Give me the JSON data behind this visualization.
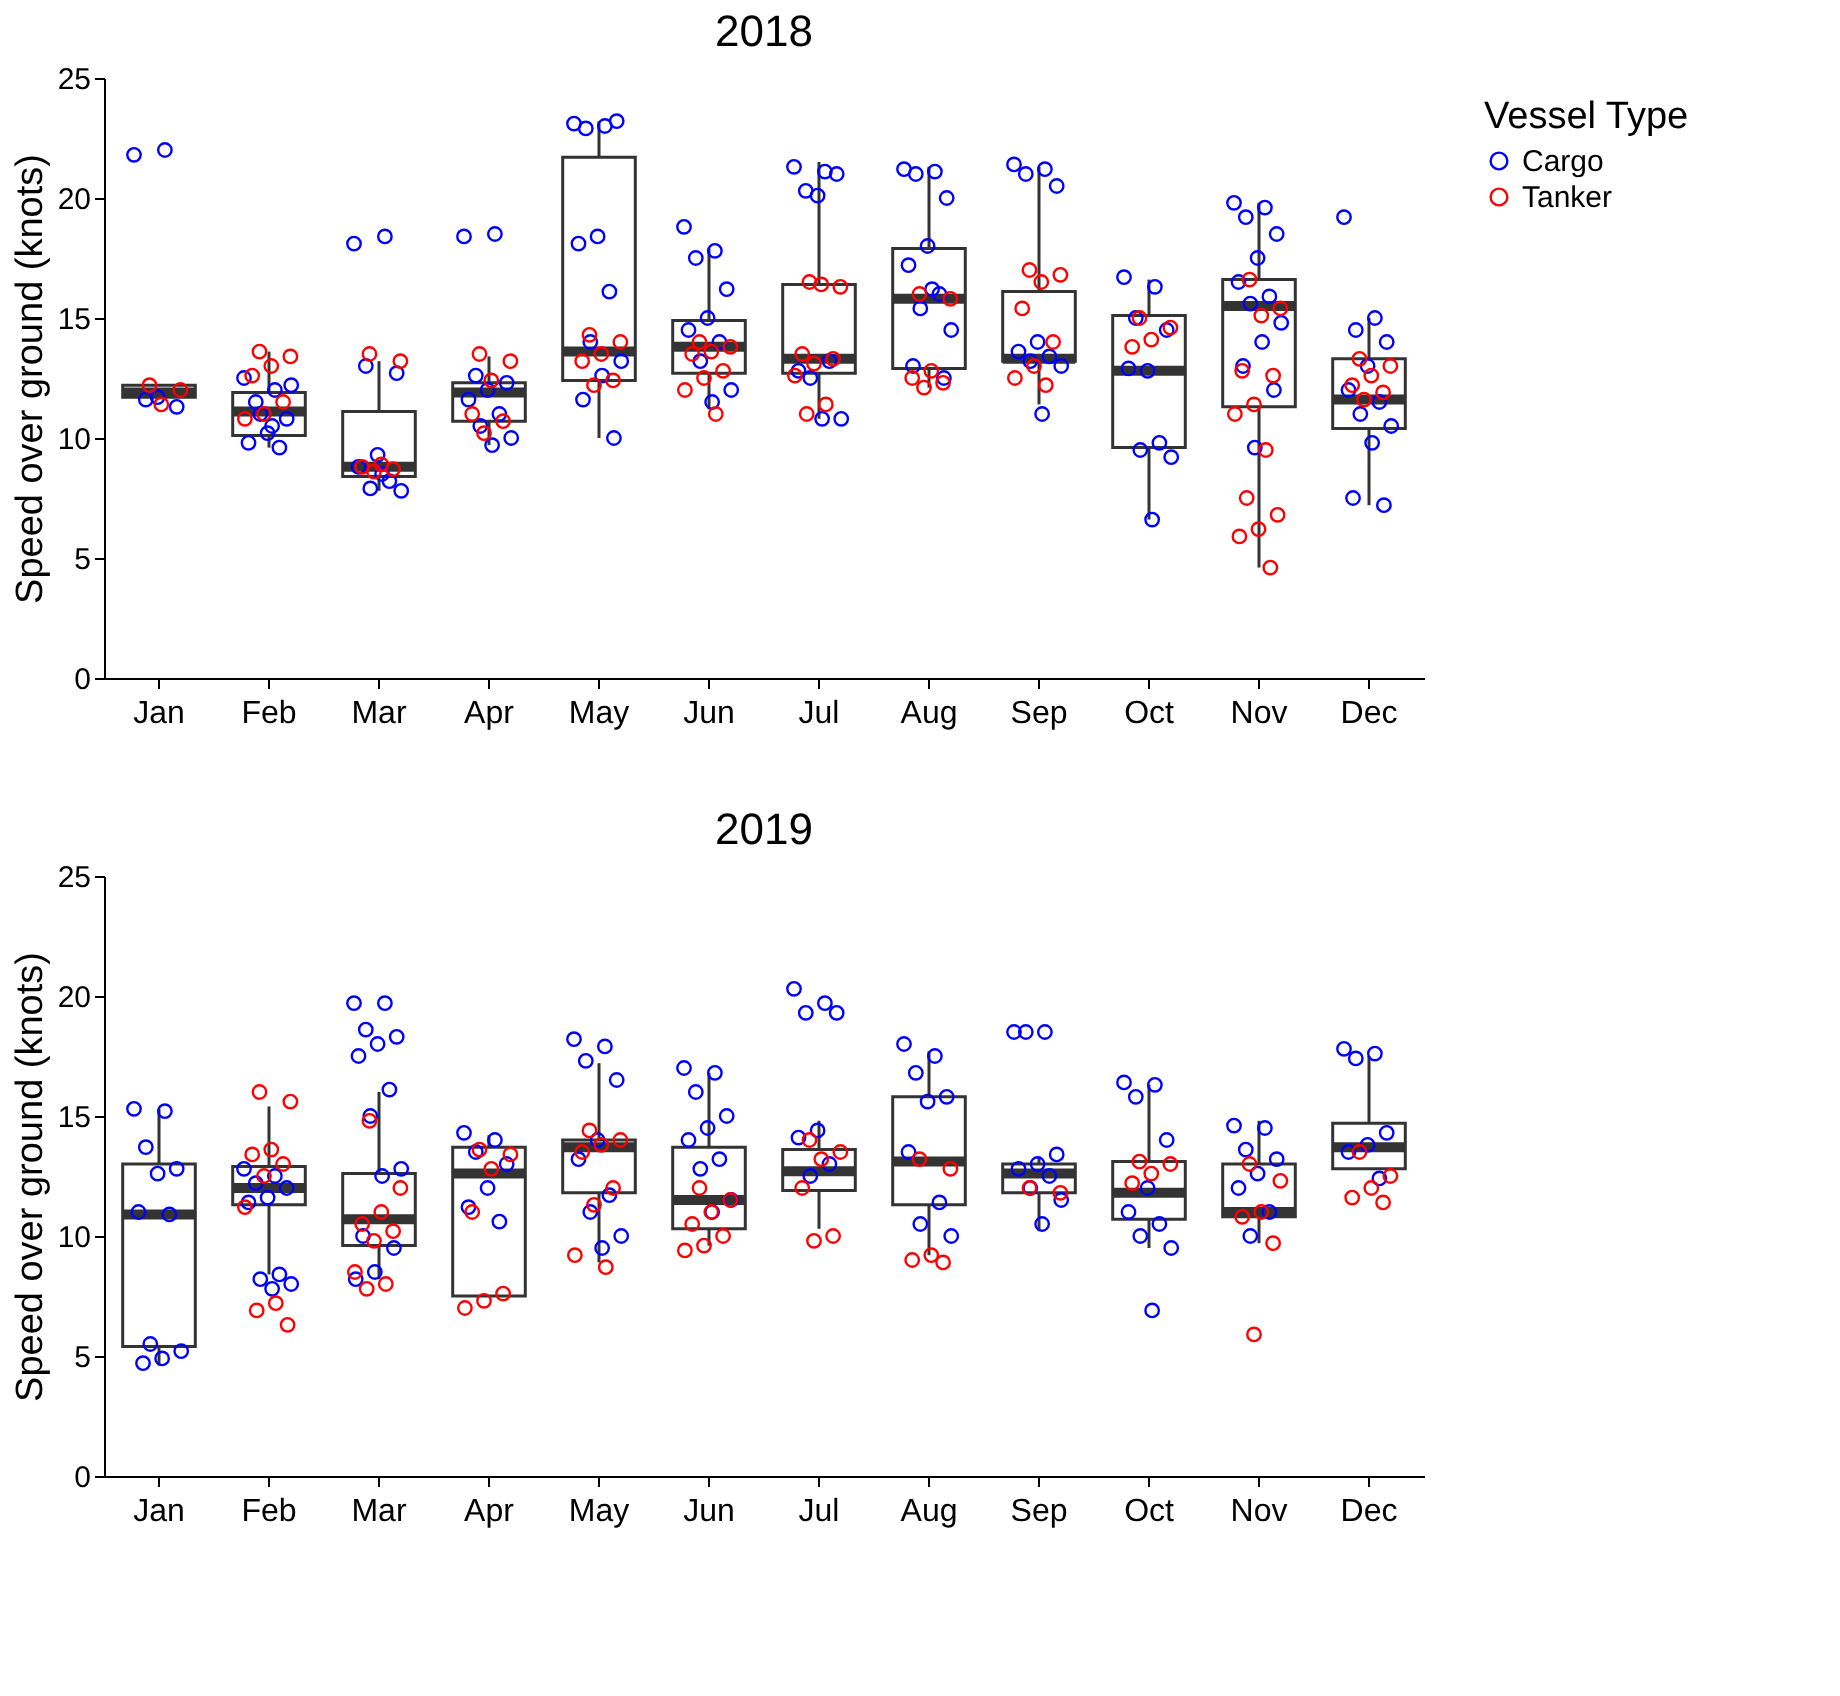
{
  "chart_data": [
    {
      "type": "box",
      "title": "2018",
      "ylabel": "Speed over ground (knots)",
      "legend_title": "Vessel Type",
      "legend": "right",
      "marker": "circle",
      "grid": false,
      "categories": [
        "Jan",
        "Feb",
        "Mar",
        "Apr",
        "May",
        "Jun",
        "Jul",
        "Aug",
        "Sep",
        "Oct",
        "Nov",
        "Dec"
      ],
      "ylim": [
        0,
        25
      ],
      "yticks": [
        0,
        5,
        10,
        15,
        20,
        25
      ],
      "boxes": [
        {
          "low": 11.7,
          "q1": 11.7,
          "median": 11.9,
          "q3": 12.2,
          "high": 12.2
        },
        {
          "low": 9.6,
          "q1": 10.1,
          "median": 11.1,
          "q3": 11.9,
          "high": 13.6
        },
        {
          "low": 7.8,
          "q1": 8.4,
          "median": 8.8,
          "q3": 11.1,
          "high": 13.2
        },
        {
          "low": 9.7,
          "q1": 10.7,
          "median": 11.9,
          "q3": 12.3,
          "high": 13.4
        },
        {
          "low": 10.0,
          "q1": 12.4,
          "median": 13.6,
          "q3": 21.7,
          "high": 23.2
        },
        {
          "low": 11.2,
          "q1": 12.7,
          "median": 13.8,
          "q3": 14.9,
          "high": 17.9
        },
        {
          "low": 10.8,
          "q1": 12.7,
          "median": 13.3,
          "q3": 16.4,
          "high": 21.5
        },
        {
          "low": 12.1,
          "q1": 12.9,
          "median": 15.8,
          "q3": 17.9,
          "high": 21.3
        },
        {
          "low": 11.4,
          "q1": 13.2,
          "median": 13.3,
          "q3": 16.1,
          "high": 21.3
        },
        {
          "low": 6.6,
          "q1": 9.6,
          "median": 12.8,
          "q3": 15.1,
          "high": 16.6
        },
        {
          "low": 4.6,
          "q1": 11.3,
          "median": 15.5,
          "q3": 16.6,
          "high": 19.8
        },
        {
          "low": 7.2,
          "q1": 10.4,
          "median": 11.6,
          "q3": 13.3,
          "high": 15.0
        }
      ],
      "series": [
        {
          "name": "Cargo",
          "type": "scatter",
          "color": "#0000ff",
          "x": [
            "Jan",
            "Jan",
            "Jan",
            "Jan",
            "Jan",
            "Feb",
            "Feb",
            "Feb",
            "Feb",
            "Feb",
            "Feb",
            "Feb",
            "Feb",
            "Feb",
            "Feb",
            "Mar",
            "Mar",
            "Mar",
            "Mar",
            "Mar",
            "Mar",
            "Mar",
            "Mar",
            "Mar",
            "Mar",
            "Apr",
            "Apr",
            "Apr",
            "Apr",
            "Apr",
            "Apr",
            "Apr",
            "Apr",
            "Apr",
            "Apr",
            "May",
            "May",
            "May",
            "May",
            "May",
            "May",
            "May",
            "May",
            "May",
            "May",
            "May",
            "May",
            "Jun",
            "Jun",
            "Jun",
            "Jun",
            "Jun",
            "Jun",
            "Jun",
            "Jun",
            "Jun",
            "Jun",
            "Jul",
            "Jul",
            "Jul",
            "Jul",
            "Jul",
            "Jul",
            "Jul",
            "Jul",
            "Jul",
            "Jul",
            "Aug",
            "Aug",
            "Aug",
            "Aug",
            "Aug",
            "Aug",
            "Aug",
            "Aug",
            "Aug",
            "Aug",
            "Aug",
            "Aug",
            "Sep",
            "Sep",
            "Sep",
            "Sep",
            "Sep",
            "Sep",
            "Sep",
            "Sep",
            "Sep",
            "Sep",
            "Oct",
            "Oct",
            "Oct",
            "Oct",
            "Oct",
            "Oct",
            "Oct",
            "Oct",
            "Oct",
            "Oct",
            "Nov",
            "Nov",
            "Nov",
            "Nov",
            "Nov",
            "Nov",
            "Nov",
            "Nov",
            "Nov",
            "Nov",
            "Nov",
            "Nov",
            "Nov",
            "Dec",
            "Dec",
            "Dec",
            "Dec",
            "Dec",
            "Dec",
            "Dec",
            "Dec",
            "Dec",
            "Dec",
            "Dec",
            "Dec"
          ],
          "values": [
            21.8,
            22.0,
            11.6,
            11.3,
            11.7,
            12.5,
            12.0,
            11.5,
            10.8,
            10.2,
            9.8,
            9.6,
            11.0,
            12.2,
            10.5,
            18.1,
            18.4,
            13.0,
            12.7,
            9.3,
            8.8,
            8.2,
            7.9,
            7.8,
            8.5,
            18.4,
            18.5,
            12.6,
            12.3,
            12.0,
            11.6,
            11.0,
            10.5,
            10.0,
            9.7,
            23.1,
            23.0,
            22.9,
            23.2,
            18.4,
            18.1,
            16.1,
            14.0,
            13.2,
            12.6,
            11.6,
            10.0,
            18.8,
            17.8,
            17.5,
            16.2,
            15.0,
            14.5,
            14.0,
            13.2,
            12.0,
            11.5,
            21.3,
            21.1,
            20.3,
            21.0,
            20.1,
            12.8,
            13.2,
            12.5,
            10.8,
            10.8,
            21.2,
            21.1,
            21.0,
            20.0,
            18.0,
            17.2,
            16.0,
            15.4,
            14.5,
            16.2,
            13.0,
            12.5,
            21.4,
            21.2,
            21.0,
            20.5,
            14.0,
            13.6,
            13.4,
            13.2,
            13.0,
            11.0,
            16.7,
            16.3,
            15.0,
            14.5,
            12.8,
            12.9,
            9.8,
            9.5,
            9.2,
            6.6,
            19.8,
            19.6,
            19.2,
            18.5,
            17.5,
            16.5,
            15.9,
            15.6,
            14.8,
            14.0,
            13.0,
            12.0,
            9.6,
            19.2,
            15.0,
            14.5,
            14.0,
            13.0,
            12.0,
            11.5,
            11.0,
            10.5,
            9.8,
            7.5,
            7.2
          ]
        },
        {
          "name": "Tanker",
          "type": "scatter",
          "color": "#ff0000",
          "x": [
            "Jan",
            "Jan",
            "Jan",
            "Feb",
            "Feb",
            "Feb",
            "Feb",
            "Feb",
            "Feb",
            "Feb",
            "Mar",
            "Mar",
            "Mar",
            "Mar",
            "Mar",
            "Mar",
            "Apr",
            "Apr",
            "Apr",
            "Apr",
            "Apr",
            "Apr",
            "May",
            "May",
            "May",
            "May",
            "May",
            "May",
            "Jun",
            "Jun",
            "Jun",
            "Jun",
            "Jun",
            "Jun",
            "Jun",
            "Jun",
            "Jul",
            "Jul",
            "Jul",
            "Jul",
            "Jul",
            "Jul",
            "Jul",
            "Jul",
            "Jul",
            "Aug",
            "Aug",
            "Aug",
            "Aug",
            "Aug",
            "Aug",
            "Sep",
            "Sep",
            "Sep",
            "Sep",
            "Sep",
            "Sep",
            "Sep",
            "Sep",
            "Oct",
            "Oct",
            "Oct",
            "Oct",
            "Nov",
            "Nov",
            "Nov",
            "Nov",
            "Nov",
            "Nov",
            "Nov",
            "Nov",
            "Nov",
            "Nov",
            "Nov",
            "Nov",
            "Nov",
            "Dec",
            "Dec",
            "Dec",
            "Dec",
            "Dec",
            "Dec"
          ],
          "values": [
            12.2,
            12.0,
            11.4,
            13.6,
            13.4,
            13.0,
            12.6,
            11.5,
            11.0,
            10.8,
            13.5,
            13.2,
            8.9,
            8.8,
            8.7,
            8.6,
            13.5,
            13.2,
            12.4,
            11.0,
            10.7,
            10.2,
            14.3,
            14.0,
            13.5,
            13.2,
            12.4,
            12.2,
            14.0,
            13.8,
            13.6,
            13.5,
            12.8,
            12.5,
            12.0,
            11.0,
            16.5,
            16.3,
            16.4,
            13.5,
            13.3,
            13.1,
            12.6,
            11.4,
            11.0,
            16.0,
            15.8,
            12.8,
            12.5,
            12.3,
            12.1,
            17.0,
            16.8,
            16.5,
            15.4,
            14.0,
            13.0,
            12.5,
            12.2,
            15.0,
            14.6,
            14.1,
            13.8,
            16.6,
            15.4,
            15.1,
            12.8,
            12.6,
            11.4,
            11.0,
            9.5,
            7.5,
            6.8,
            6.2,
            5.9,
            4.6,
            13.3,
            13.0,
            12.6,
            12.2,
            11.9,
            11.6
          ]
        }
      ]
    },
    {
      "type": "box",
      "title": "2019",
      "ylabel": "Speed over ground (knots)",
      "marker": "circle",
      "grid": false,
      "categories": [
        "Jan",
        "Feb",
        "Mar",
        "Apr",
        "May",
        "Jun",
        "Jul",
        "Aug",
        "Sep",
        "Oct",
        "Nov",
        "Dec"
      ],
      "ylim": [
        0,
        25
      ],
      "yticks": [
        0,
        5,
        10,
        15,
        20,
        25
      ],
      "boxes": [
        {
          "low": 4.6,
          "q1": 5.4,
          "median": 10.9,
          "q3": 13.0,
          "high": 15.3
        },
        {
          "low": 8.4,
          "q1": 11.3,
          "median": 12.0,
          "q3": 12.9,
          "high": 15.4
        },
        {
          "low": 8.2,
          "q1": 9.6,
          "median": 10.7,
          "q3": 12.6,
          "high": 16.0
        },
        {
          "low": 7.5,
          "q1": 7.5,
          "median": 12.6,
          "q3": 13.7,
          "high": 14.2
        },
        {
          "low": 8.9,
          "q1": 11.8,
          "median": 13.7,
          "q3": 14.0,
          "high": 17.2
        },
        {
          "low": 9.6,
          "q1": 10.3,
          "median": 11.5,
          "q3": 13.7,
          "high": 16.8
        },
        {
          "low": 10.3,
          "q1": 11.9,
          "median": 12.7,
          "q3": 13.6,
          "high": 14.8
        },
        {
          "low": 9.2,
          "q1": 11.3,
          "median": 13.1,
          "q3": 15.8,
          "high": 17.7
        },
        {
          "low": 10.2,
          "q1": 11.8,
          "median": 12.6,
          "q3": 13.0,
          "high": 13.3
        },
        {
          "low": 9.5,
          "q1": 10.7,
          "median": 11.8,
          "q3": 13.1,
          "high": 16.3
        },
        {
          "low": 9.7,
          "q1": 10.8,
          "median": 11.0,
          "q3": 13.0,
          "high": 14.8
        },
        {
          "low": 12.8,
          "q1": 12.8,
          "median": 13.7,
          "q3": 14.7,
          "high": 17.5
        }
      ],
      "series": [
        {
          "name": "Cargo",
          "type": "scatter",
          "color": "#0000ff",
          "x": [
            "Jan",
            "Jan",
            "Jan",
            "Jan",
            "Jan",
            "Jan",
            "Jan",
            "Jan",
            "Jan",
            "Jan",
            "Jan",
            "Feb",
            "Feb",
            "Feb",
            "Feb",
            "Feb",
            "Feb",
            "Feb",
            "Feb",
            "Feb",
            "Feb",
            "Mar",
            "Mar",
            "Mar",
            "Mar",
            "Mar",
            "Mar",
            "Mar",
            "Mar",
            "Mar",
            "Mar",
            "Mar",
            "Mar",
            "Mar",
            "Mar",
            "Apr",
            "Apr",
            "Apr",
            "Apr",
            "Apr",
            "Apr",
            "Apr",
            "May",
            "May",
            "May",
            "May",
            "May",
            "May",
            "May",
            "May",
            "May",
            "May",
            "Jun",
            "Jun",
            "Jun",
            "Jun",
            "Jun",
            "Jun",
            "Jun",
            "Jun",
            "Jun",
            "Jun",
            "Jul",
            "Jul",
            "Jul",
            "Jul",
            "Jul",
            "Jul",
            "Jul",
            "Jul",
            "Aug",
            "Aug",
            "Aug",
            "Aug",
            "Aug",
            "Aug",
            "Aug",
            "Aug",
            "Aug",
            "Sep",
            "Sep",
            "Sep",
            "Sep",
            "Sep",
            "Sep",
            "Sep",
            "Sep",
            "Sep",
            "Sep",
            "Oct",
            "Oct",
            "Oct",
            "Oct",
            "Oct",
            "Oct",
            "Oct",
            "Oct",
            "Oct",
            "Oct",
            "Nov",
            "Nov",
            "Nov",
            "Nov",
            "Nov",
            "Nov",
            "Nov",
            "Nov",
            "Dec",
            "Dec",
            "Dec",
            "Dec",
            "Dec",
            "Dec",
            "Dec"
          ],
          "values": [
            15.3,
            15.2,
            13.7,
            12.8,
            12.6,
            11.0,
            10.9,
            5.5,
            5.2,
            4.9,
            4.7,
            12.8,
            12.5,
            12.2,
            12.0,
            11.6,
            11.4,
            8.4,
            8.2,
            8.0,
            7.8,
            19.7,
            19.7,
            18.6,
            18.3,
            18.0,
            17.5,
            16.1,
            15.0,
            12.8,
            12.5,
            10.0,
            9.5,
            8.5,
            8.2,
            14.3,
            14.0,
            13.5,
            13.0,
            12.0,
            11.2,
            10.6,
            18.2,
            17.9,
            17.3,
            16.5,
            14.0,
            13.2,
            11.7,
            11.0,
            10.0,
            9.5,
            17.0,
            16.8,
            16.0,
            15.0,
            14.5,
            14.0,
            13.2,
            12.8,
            11.5,
            11.0,
            20.3,
            19.7,
            19.3,
            19.3,
            14.4,
            14.1,
            13.0,
            12.5,
            18.0,
            17.5,
            16.8,
            15.8,
            15.6,
            13.5,
            11.4,
            10.5,
            10.0,
            18.5,
            18.5,
            18.5,
            13.4,
            13.0,
            12.8,
            12.5,
            12.0,
            11.5,
            10.5,
            16.4,
            16.3,
            15.8,
            14.0,
            12.0,
            11.0,
            10.5,
            10.0,
            9.5,
            6.9,
            14.6,
            14.5,
            13.6,
            13.2,
            12.6,
            12.0,
            11.0,
            10.0,
            17.8,
            17.6,
            17.4,
            14.3,
            13.8,
            13.5,
            12.4
          ]
        },
        {
          "name": "Tanker",
          "type": "scatter",
          "color": "#ff0000",
          "x": [
            "Feb",
            "Feb",
            "Feb",
            "Feb",
            "Feb",
            "Feb",
            "Feb",
            "Feb",
            "Feb",
            "Feb",
            "Mar",
            "Mar",
            "Mar",
            "Mar",
            "Mar",
            "Mar",
            "Mar",
            "Mar",
            "Mar",
            "Apr",
            "Apr",
            "Apr",
            "Apr",
            "Apr",
            "Apr",
            "Apr",
            "May",
            "May",
            "May",
            "May",
            "May",
            "May",
            "May",
            "May",
            "Jun",
            "Jun",
            "Jun",
            "Jun",
            "Jun",
            "Jun",
            "Jun",
            "Jul",
            "Jul",
            "Jul",
            "Jul",
            "Jul",
            "Jul",
            "Aug",
            "Aug",
            "Aug",
            "Aug",
            "Aug",
            "Sep",
            "Sep",
            "Oct",
            "Oct",
            "Oct",
            "Oct",
            "Nov",
            "Nov",
            "Nov",
            "Nov",
            "Nov",
            "Nov",
            "Dec",
            "Dec",
            "Dec",
            "Dec",
            "Dec"
          ],
          "values": [
            16.0,
            15.6,
            13.6,
            13.4,
            13.0,
            12.5,
            11.2,
            7.2,
            6.9,
            6.3,
            14.8,
            12.0,
            11.0,
            10.5,
            10.2,
            9.8,
            8.5,
            8.0,
            7.8,
            13.6,
            13.4,
            12.8,
            11.0,
            7.6,
            7.3,
            7.0,
            14.4,
            14.0,
            13.8,
            13.5,
            12.0,
            11.3,
            9.2,
            8.7,
            12.0,
            11.5,
            11.0,
            10.5,
            10.0,
            9.6,
            9.4,
            14.0,
            13.5,
            13.2,
            12.0,
            10.0,
            9.8,
            13.2,
            12.8,
            9.2,
            9.0,
            8.9,
            12.0,
            11.8,
            13.1,
            13.0,
            12.6,
            12.2,
            13.0,
            12.3,
            11.0,
            10.8,
            9.7,
            5.9,
            13.5,
            12.5,
            12.0,
            11.6,
            11.4
          ]
        }
      ]
    }
  ]
}
